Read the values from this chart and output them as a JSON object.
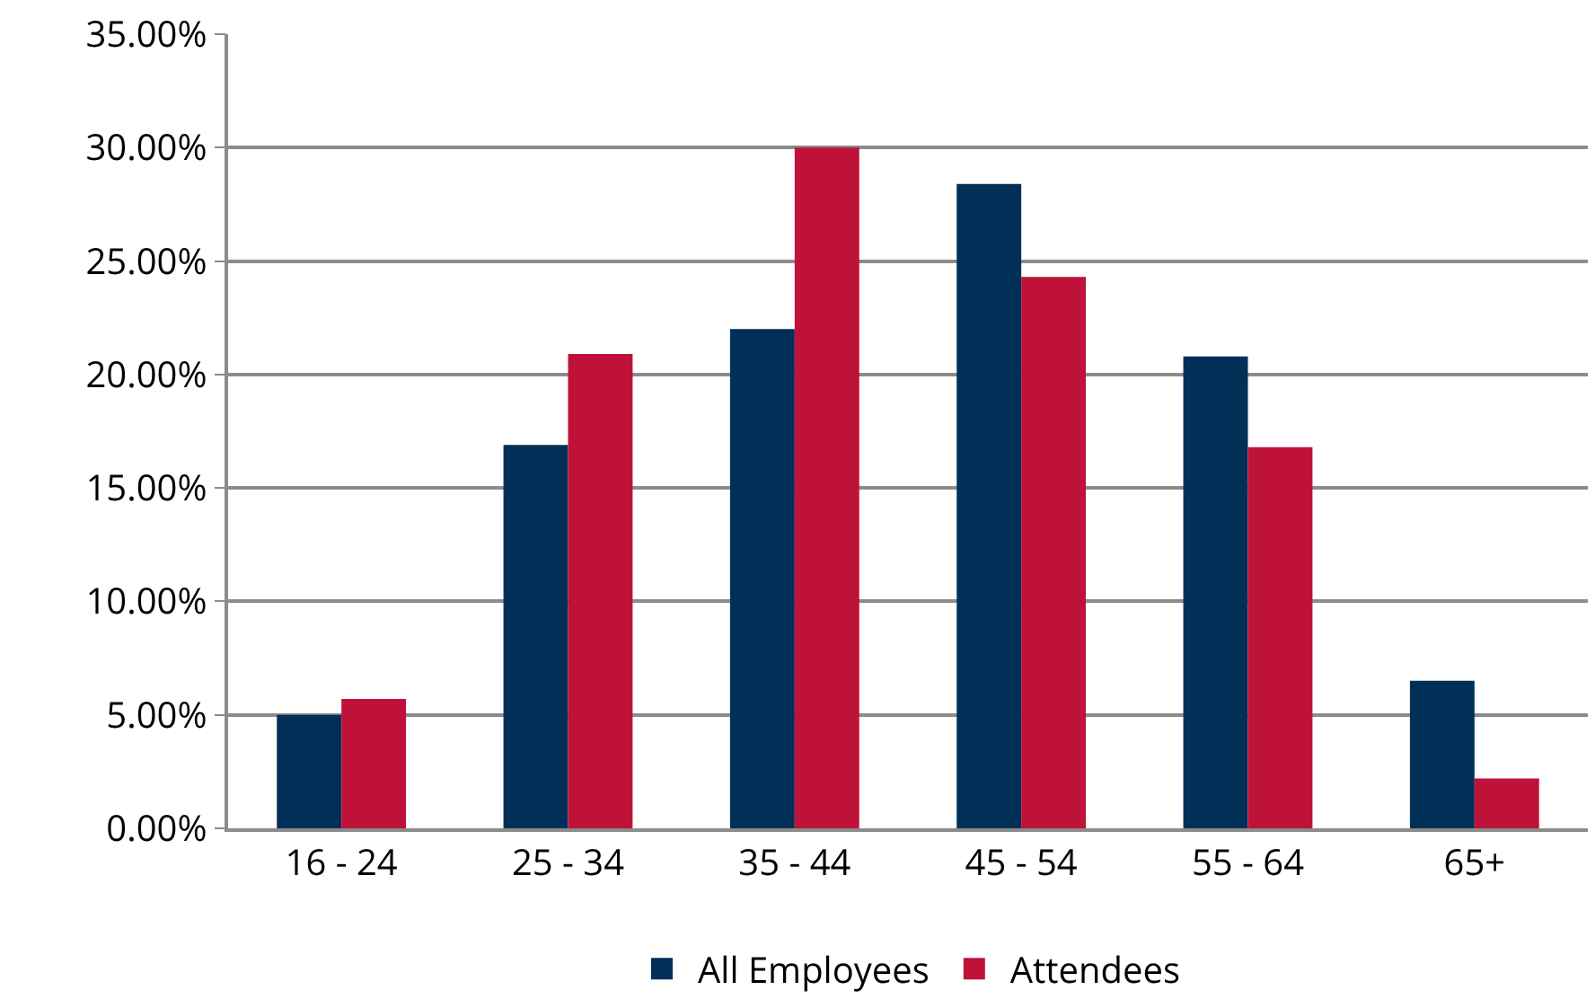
{
  "chart_data": {
    "type": "bar",
    "categories": [
      "16 - 24",
      "25 - 34",
      "35 - 44",
      "45 - 54",
      "55 - 64",
      "65+"
    ],
    "series": [
      {
        "name": "All Employees",
        "color": "#003057",
        "values": [
          5.0,
          16.9,
          22.0,
          28.4,
          20.8,
          6.5
        ]
      },
      {
        "name": "Attendees",
        "color": "#be1238",
        "values": [
          5.7,
          20.9,
          30.0,
          24.3,
          16.8,
          2.2
        ]
      }
    ],
    "ylim": [
      0,
      35
    ],
    "yticks": [
      {
        "value": 0,
        "label": "0.00%"
      },
      {
        "value": 5,
        "label": "5.00%"
      },
      {
        "value": 10,
        "label": "10.00%"
      },
      {
        "value": 15,
        "label": "15.00%"
      },
      {
        "value": 20,
        "label": "20.00%"
      },
      {
        "value": 25,
        "label": "25.00%"
      },
      {
        "value": 30,
        "label": "30.00%"
      },
      {
        "value": 35,
        "label": "35.00%"
      }
    ],
    "grid": "y",
    "legend": "bottom"
  }
}
